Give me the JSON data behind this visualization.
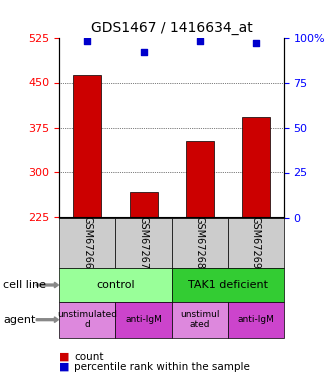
{
  "title": "GDS1467 / 1416634_at",
  "samples": [
    "GSM67266",
    "GSM67267",
    "GSM67268",
    "GSM67269"
  ],
  "bar_values": [
    462,
    268,
    352,
    393
  ],
  "bar_bottom": 225,
  "percentile_values": [
    98,
    92,
    98,
    97
  ],
  "ylim_left": [
    225,
    525
  ],
  "ylim_right": [
    0,
    100
  ],
  "yticks_left": [
    225,
    300,
    375,
    450,
    525
  ],
  "yticks_right": [
    0,
    25,
    50,
    75,
    100
  ],
  "bar_color": "#cc0000",
  "dot_color": "#0000cc",
  "grid_yticks": [
    300,
    375,
    450
  ],
  "cell_line_labels": [
    "control",
    "TAK1 deficient"
  ],
  "cell_line_spans": [
    [
      0,
      2
    ],
    [
      2,
      4
    ]
  ],
  "cell_line_colors": [
    "#99ff99",
    "#33cc33"
  ],
  "agent_labels": [
    "unstimulated\nd",
    "anti-IgM",
    "unstimul\nated",
    "anti-IgM"
  ],
  "agent_colors": [
    "#dd88dd",
    "#cc44cc",
    "#dd88dd",
    "#cc44cc"
  ],
  "xlabel_row1": "cell line",
  "xlabel_row2": "agent",
  "legend_count_color": "#cc0000",
  "legend_percentile_color": "#0000cc",
  "background_color": "#ffffff"
}
